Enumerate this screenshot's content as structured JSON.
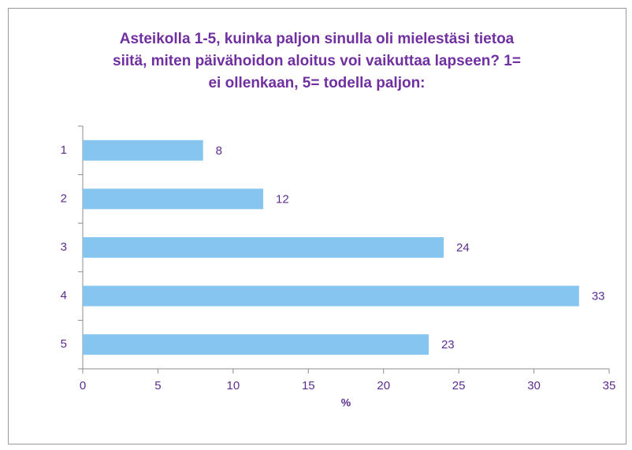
{
  "chart_data": {
    "type": "bar",
    "orientation": "horizontal",
    "title": [
      "Asteikolla 1-5, kuinka paljon sinulla oli mielestäsi tietoa",
      "siitä, miten päivähoidon aloitus voi vaikuttaa lapseen? 1=",
      "ei ollenkaan, 5= todella paljon:"
    ],
    "categories": [
      "1",
      "2",
      "3",
      "4",
      "5"
    ],
    "values": [
      8,
      12,
      24,
      33,
      23
    ],
    "color": "#85c5ef",
    "xlabel": "%",
    "xlim": [
      0,
      35
    ],
    "xticks": [
      0,
      5,
      10,
      15,
      20,
      25,
      30,
      35
    ],
    "grid": false
  }
}
